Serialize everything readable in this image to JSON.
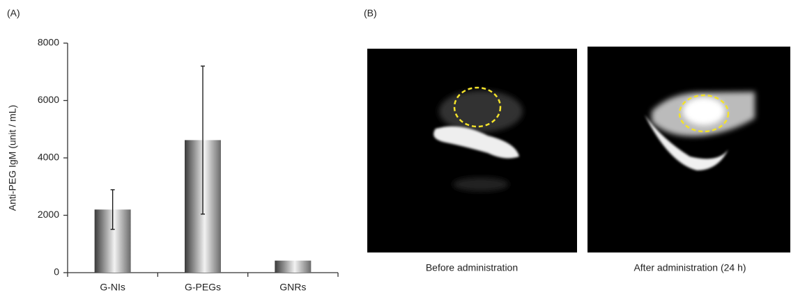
{
  "panel_labels": [
    "(A)",
    "(B)"
  ],
  "chart_data": {
    "type": "bar",
    "y_label": "Anti-PEG IgM (unit / mL)",
    "categories": [
      "G-NIs",
      "G-PEGs",
      "GNRs"
    ],
    "values": [
      2200,
      4620,
      420
    ],
    "errors": [
      690,
      2580,
      null
    ],
    "ylim": [
      0,
      8000
    ],
    "yticks": [
      0,
      2000,
      4000,
      6000,
      8000
    ]
  },
  "images": [
    {
      "caption": "Before administration"
    },
    {
      "caption": "After administration (24 h)"
    }
  ]
}
